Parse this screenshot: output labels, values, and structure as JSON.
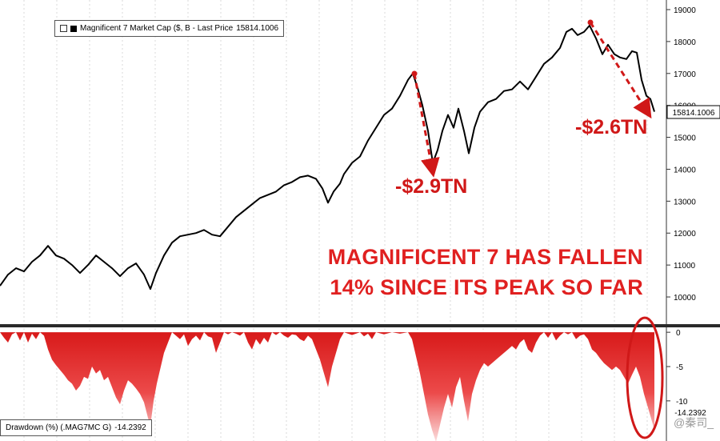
{
  "chart_data": [
    {
      "type": "line",
      "legend": "Magnificent 7 Market Cap ($, B - Last Price",
      "last_price": "15814.1006",
      "ylim": [
        9700,
        19100
      ],
      "yticks": [
        "10000",
        "11000",
        "12000",
        "13000",
        "14000",
        "15000",
        "16000",
        "17000",
        "18000",
        "19000"
      ],
      "grid": "vertical",
      "color": "#000000",
      "points": [
        [
          0,
          10350
        ],
        [
          10,
          10700
        ],
        [
          20,
          10900
        ],
        [
          30,
          10800
        ],
        [
          40,
          11100
        ],
        [
          50,
          11300
        ],
        [
          60,
          11600
        ],
        [
          70,
          11300
        ],
        [
          80,
          11200
        ],
        [
          90,
          11000
        ],
        [
          100,
          10750
        ],
        [
          110,
          11000
        ],
        [
          120,
          11300
        ],
        [
          130,
          11100
        ],
        [
          140,
          10900
        ],
        [
          150,
          10650
        ],
        [
          160,
          10900
        ],
        [
          170,
          11050
        ],
        [
          180,
          10700
        ],
        [
          188,
          10250
        ],
        [
          195,
          10750
        ],
        [
          205,
          11300
        ],
        [
          215,
          11700
        ],
        [
          225,
          11900
        ],
        [
          235,
          11950
        ],
        [
          245,
          12000
        ],
        [
          255,
          12100
        ],
        [
          265,
          11950
        ],
        [
          275,
          11900
        ],
        [
          285,
          12200
        ],
        [
          295,
          12500
        ],
        [
          305,
          12700
        ],
        [
          315,
          12900
        ],
        [
          325,
          13100
        ],
        [
          335,
          13200
        ],
        [
          345,
          13300
        ],
        [
          355,
          13500
        ],
        [
          365,
          13600
        ],
        [
          375,
          13750
        ],
        [
          385,
          13800
        ],
        [
          395,
          13700
        ],
        [
          403,
          13400
        ],
        [
          410,
          12950
        ],
        [
          417,
          13300
        ],
        [
          425,
          13550
        ],
        [
          430,
          13850
        ],
        [
          440,
          14200
        ],
        [
          450,
          14400
        ],
        [
          460,
          14900
        ],
        [
          470,
          15300
        ],
        [
          480,
          15700
        ],
        [
          490,
          15900
        ],
        [
          500,
          16300
        ],
        [
          510,
          16800
        ],
        [
          516,
          17000
        ],
        [
          522,
          16550
        ],
        [
          528,
          16000
        ],
        [
          535,
          15200
        ],
        [
          541,
          14200
        ],
        [
          547,
          14600
        ],
        [
          553,
          15200
        ],
        [
          560,
          15700
        ],
        [
          567,
          15300
        ],
        [
          573,
          15900
        ],
        [
          580,
          15200
        ],
        [
          586,
          14500
        ],
        [
          593,
          15300
        ],
        [
          600,
          15800
        ],
        [
          610,
          16100
        ],
        [
          620,
          16200
        ],
        [
          630,
          16450
        ],
        [
          640,
          16500
        ],
        [
          650,
          16750
        ],
        [
          660,
          16500
        ],
        [
          670,
          16900
        ],
        [
          680,
          17300
        ],
        [
          690,
          17500
        ],
        [
          700,
          17800
        ],
        [
          708,
          18300
        ],
        [
          715,
          18400
        ],
        [
          722,
          18200
        ],
        [
          730,
          18300
        ],
        [
          737,
          18500
        ],
        [
          745,
          18100
        ],
        [
          753,
          17600
        ],
        [
          760,
          17900
        ],
        [
          768,
          17600
        ],
        [
          775,
          17500
        ],
        [
          783,
          17450
        ],
        [
          790,
          17700
        ],
        [
          796,
          17650
        ],
        [
          802,
          16800
        ],
        [
          808,
          16300
        ],
        [
          813,
          16200
        ],
        [
          818,
          15800
        ]
      ]
    },
    {
      "type": "area",
      "legend": "Drawdown (%) (.MAG7MC G)",
      "last_value": "-14.2392",
      "ylim": [
        -15.5,
        0.6
      ],
      "yticks": [
        "0",
        "-5",
        "-10"
      ],
      "color": "#e21f1f",
      "points": [
        [
          0,
          0
        ],
        [
          5,
          -0.8
        ],
        [
          10,
          -1.5
        ],
        [
          15,
          -0.3
        ],
        [
          20,
          0
        ],
        [
          25,
          -1.2
        ],
        [
          30,
          0
        ],
        [
          35,
          -1.5
        ],
        [
          40,
          -0.2
        ],
        [
          45,
          -1
        ],
        [
          50,
          0
        ],
        [
          55,
          -0.5
        ],
        [
          60,
          -2.5
        ],
        [
          65,
          -4
        ],
        [
          70,
          -4.8
        ],
        [
          75,
          -5.5
        ],
        [
          80,
          -6.2
        ],
        [
          85,
          -7
        ],
        [
          90,
          -7.5
        ],
        [
          95,
          -8.5
        ],
        [
          100,
          -7.8
        ],
        [
          105,
          -6.5
        ],
        [
          110,
          -6.8
        ],
        [
          115,
          -5
        ],
        [
          120,
          -6
        ],
        [
          125,
          -5.5
        ],
        [
          130,
          -7
        ],
        [
          135,
          -6.5
        ],
        [
          140,
          -8
        ],
        [
          145,
          -9.5
        ],
        [
          150,
          -10.5
        ],
        [
          155,
          -8.5
        ],
        [
          160,
          -7
        ],
        [
          165,
          -7.5
        ],
        [
          170,
          -8.2
        ],
        [
          175,
          -9
        ],
        [
          180,
          -10.2
        ],
        [
          185,
          -12.5
        ],
        [
          188,
          -13.6
        ],
        [
          192,
          -10
        ],
        [
          196,
          -7.5
        ],
        [
          200,
          -5.5
        ],
        [
          205,
          -3
        ],
        [
          210,
          -1.5
        ],
        [
          215,
          0
        ],
        [
          220,
          -0.5
        ],
        [
          225,
          -1
        ],
        [
          230,
          -0.3
        ],
        [
          235,
          -2
        ],
        [
          240,
          -1
        ],
        [
          245,
          -0.5
        ],
        [
          250,
          -1.2
        ],
        [
          255,
          0
        ],
        [
          260,
          -0.6
        ],
        [
          265,
          -0.8
        ],
        [
          270,
          -3
        ],
        [
          275,
          -1.5
        ],
        [
          280,
          0
        ],
        [
          285,
          -0.3
        ],
        [
          290,
          0
        ],
        [
          295,
          -0.2
        ],
        [
          300,
          -0.5
        ],
        [
          305,
          0
        ],
        [
          310,
          -1.5
        ],
        [
          315,
          -2.5
        ],
        [
          320,
          -1
        ],
        [
          325,
          -1.8
        ],
        [
          330,
          -0.8
        ],
        [
          335,
          -1.5
        ],
        [
          340,
          0
        ],
        [
          345,
          -0.4
        ],
        [
          350,
          0
        ],
        [
          355,
          -0.5
        ],
        [
          360,
          -0.8
        ],
        [
          365,
          -0.3
        ],
        [
          370,
          -0.4
        ],
        [
          375,
          -1
        ],
        [
          380,
          -1.3
        ],
        [
          385,
          -0.5
        ],
        [
          390,
          -1
        ],
        [
          395,
          -2.5
        ],
        [
          400,
          -4
        ],
        [
          405,
          -6
        ],
        [
          410,
          -8
        ],
        [
          415,
          -5
        ],
        [
          420,
          -3
        ],
        [
          425,
          -1
        ],
        [
          430,
          0
        ],
        [
          440,
          -0.4
        ],
        [
          450,
          0
        ],
        [
          455,
          -0.6
        ],
        [
          460,
          -0.2
        ],
        [
          465,
          -1
        ],
        [
          470,
          0
        ],
        [
          480,
          -0.3
        ],
        [
          490,
          0
        ],
        [
          500,
          -0.2
        ],
        [
          510,
          0
        ],
        [
          515,
          -1
        ],
        [
          520,
          -3.5
        ],
        [
          525,
          -6
        ],
        [
          530,
          -9
        ],
        [
          535,
          -12
        ],
        [
          540,
          -14.2
        ],
        [
          545,
          -16
        ],
        [
          550,
          -13.5
        ],
        [
          555,
          -11
        ],
        [
          560,
          -9
        ],
        [
          565,
          -11
        ],
        [
          570,
          -8
        ],
        [
          575,
          -6.5
        ],
        [
          580,
          -10
        ],
        [
          585,
          -13
        ],
        [
          590,
          -9
        ],
        [
          595,
          -7
        ],
        [
          600,
          -5.5
        ],
        [
          605,
          -4.5
        ],
        [
          610,
          -5
        ],
        [
          615,
          -4.5
        ],
        [
          620,
          -4
        ],
        [
          625,
          -3.5
        ],
        [
          630,
          -3
        ],
        [
          635,
          -2.5
        ],
        [
          640,
          -2
        ],
        [
          645,
          -2.5
        ],
        [
          650,
          -1.5
        ],
        [
          655,
          -1
        ],
        [
          660,
          -2.5
        ],
        [
          665,
          -3
        ],
        [
          670,
          -1.5
        ],
        [
          675,
          -0.5
        ],
        [
          680,
          0
        ],
        [
          685,
          -0.8
        ],
        [
          690,
          0
        ],
        [
          695,
          -1.2
        ],
        [
          700,
          -0.5
        ],
        [
          705,
          0
        ],
        [
          710,
          -0.3
        ],
        [
          715,
          0
        ],
        [
          720,
          -1
        ],
        [
          725,
          -0.5
        ],
        [
          730,
          -0.3
        ],
        [
          735,
          -1
        ],
        [
          740,
          -2.5
        ],
        [
          745,
          -3
        ],
        [
          750,
          -3.8
        ],
        [
          755,
          -4.5
        ],
        [
          760,
          -5
        ],
        [
          765,
          -5.5
        ],
        [
          770,
          -5
        ],
        [
          775,
          -5.5
        ],
        [
          780,
          -6.5
        ],
        [
          785,
          -7.5
        ],
        [
          790,
          -6.2
        ],
        [
          795,
          -5
        ],
        [
          800,
          -6.5
        ],
        [
          805,
          -9
        ],
        [
          810,
          -11
        ],
        [
          815,
          -13
        ],
        [
          818,
          -14.24
        ]
      ]
    }
  ],
  "annotations": {
    "drop1": "-$2.9TN",
    "drop2": "-$2.6TN",
    "headline_line1": "MAGNIFICENT 7 HAS FALLEN",
    "headline_line2": "14% SINCE ITS PEAK SO FAR"
  },
  "watermark": "@秦司_",
  "colors": {
    "annotation": "#e02020",
    "drawdown": "#e21f1f",
    "line": "#000000"
  }
}
